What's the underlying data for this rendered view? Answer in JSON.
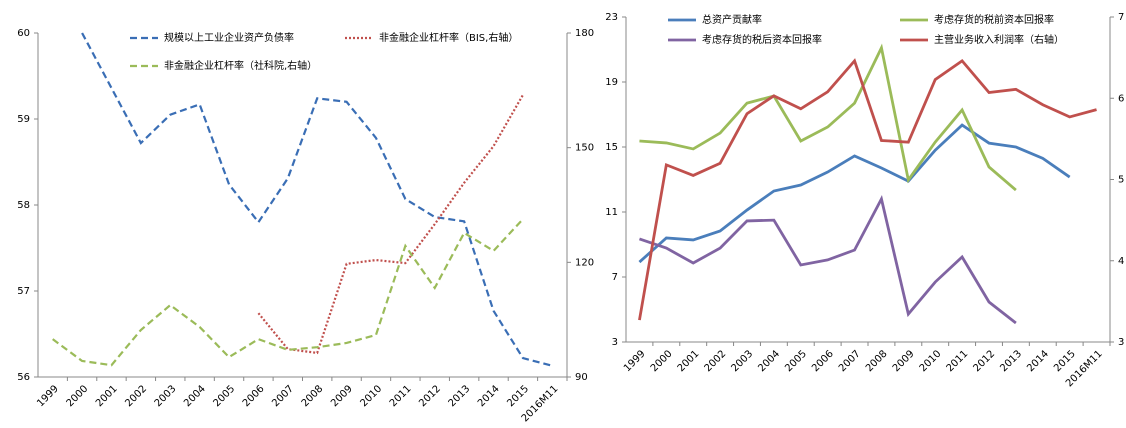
{
  "chart_data": [
    {
      "type": "line",
      "categories": [
        "1999",
        "2000",
        "2001",
        "2002",
        "2003",
        "2004",
        "2005",
        "2006",
        "2007",
        "2008",
        "2009",
        "2010",
        "2011",
        "2012",
        "2013",
        "2014",
        "2015",
        "2016M11"
      ],
      "ylim": [
        56,
        60
      ],
      "yticks": [
        56,
        57,
        58,
        59,
        60
      ],
      "y2lim": [
        90,
        180
      ],
      "y2ticks": [
        90,
        120,
        150,
        180
      ],
      "series": [
        {
          "name": "规模以上工业企业资产负债率",
          "color": "#3a6eb5",
          "dash": "dashed",
          "values": [
            null,
            60.0,
            59.36,
            58.72,
            59.05,
            59.17,
            58.24,
            57.8,
            58.31,
            59.24,
            59.2,
            58.78,
            58.07,
            57.86,
            57.81,
            56.77,
            56.22,
            56.13
          ]
        },
        {
          "name": "非金融企业杠杆率（BIS,右轴）",
          "color": "#c0504d",
          "dash": "dotted",
          "axis": "y2",
          "values": [
            null,
            null,
            null,
            null,
            null,
            null,
            null,
            106.7,
            97.3,
            96.3,
            119.6,
            120.6,
            119.8,
            130.0,
            140.8,
            150.4,
            163.8,
            null
          ]
        },
        {
          "name": "非金融企业杠杆率（社科院,右轴）",
          "color": "#9bbb59",
          "dash": "dashed",
          "axis": "y2",
          "values": [
            99.9,
            94.2,
            93.1,
            102.3,
            108.8,
            103.1,
            95.2,
            99.9,
            97.1,
            97.8,
            98.9,
            101.0,
            124.3,
            113.3,
            127.7,
            123.0,
            131.3,
            null
          ]
        }
      ]
    },
    {
      "type": "line",
      "categories": [
        "1999",
        "2000",
        "2001",
        "2002",
        "2003",
        "2004",
        "2005",
        "2006",
        "2007",
        "2008",
        "2009",
        "2010",
        "2011",
        "2012",
        "2013",
        "2014",
        "2015",
        "2016M11"
      ],
      "ylim": [
        3,
        23
      ],
      "yticks": [
        3,
        7,
        11,
        15,
        19,
        23
      ],
      "y2lim": [
        3,
        7
      ],
      "y2ticks": [
        3,
        4,
        5,
        6,
        7
      ],
      "series": [
        {
          "name": "总资产贡献率",
          "color": "#4a7ebb",
          "dash": "solid",
          "values": [
            7.92,
            9.4,
            9.28,
            9.83,
            11.12,
            12.29,
            12.66,
            13.46,
            14.45,
            13.71,
            12.9,
            14.8,
            16.35,
            15.24,
            15.0,
            14.3,
            13.15,
            null
          ]
        },
        {
          "name": "考虑存货的税前资本回报率",
          "color": "#9bbb59",
          "dash": "solid",
          "values": [
            15.37,
            15.25,
            14.88,
            15.86,
            17.7,
            18.14,
            15.37,
            16.23,
            17.7,
            21.1,
            12.97,
            15.3,
            17.28,
            13.77,
            12.35,
            null,
            null,
            null
          ]
        },
        {
          "name": "考虑存货的税后资本回报率",
          "color": "#8064a2",
          "dash": "solid",
          "values": [
            9.34,
            8.78,
            7.86,
            8.78,
            10.45,
            10.5,
            7.74,
            8.05,
            8.66,
            11.8,
            4.72,
            6.69,
            8.23,
            5.46,
            4.17,
            null,
            null,
            null
          ]
        },
        {
          "name": "主营业务收入利润率（右轴）",
          "color": "#c0504d",
          "dash": "solid",
          "axis": "y2",
          "values": [
            3.27,
            5.18,
            5.05,
            5.2,
            5.81,
            6.03,
            5.87,
            6.08,
            6.46,
            5.48,
            5.46,
            6.23,
            6.46,
            6.07,
            6.11,
            5.92,
            5.77,
            5.86
          ]
        }
      ]
    }
  ]
}
